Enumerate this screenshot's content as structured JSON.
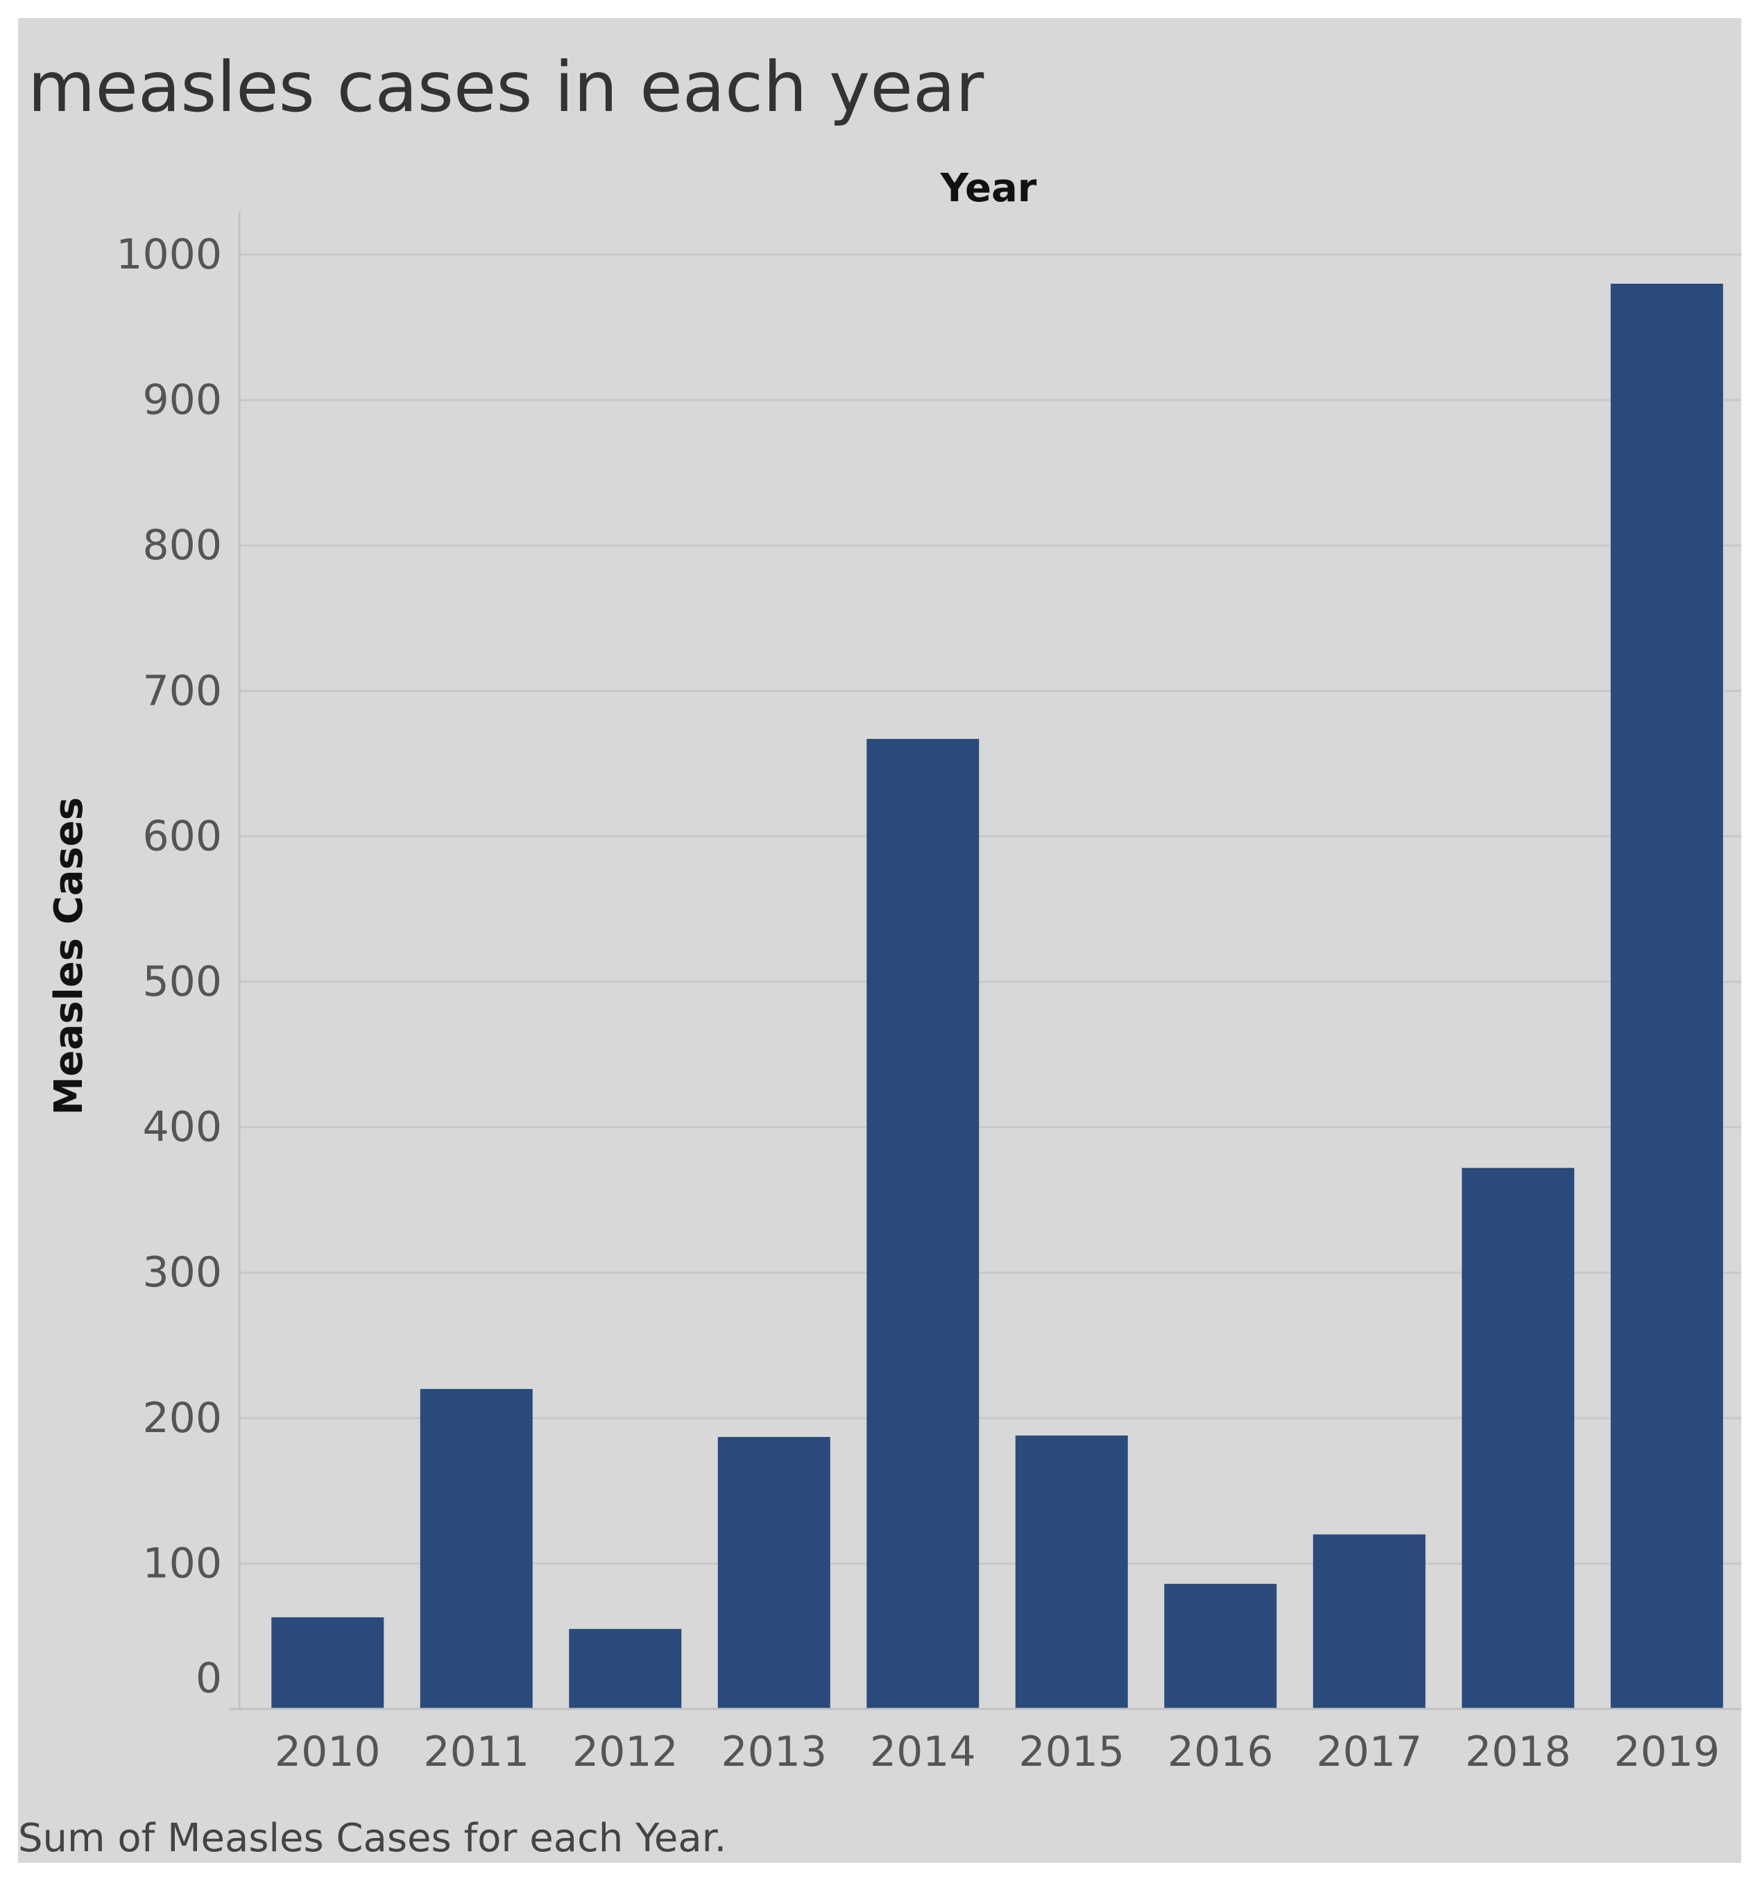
{
  "chart_data": {
    "type": "bar",
    "title": "measles cases in each year",
    "xlabel": "Year",
    "ylabel": "Measles Cases",
    "categories": [
      "2010",
      "2011",
      "2012",
      "2013",
      "2014",
      "2015",
      "2016",
      "2017",
      "2018",
      "2019"
    ],
    "values": [
      63,
      220,
      55,
      187,
      667,
      188,
      86,
      120,
      372,
      980
    ],
    "ylim": [
      0,
      1000
    ],
    "yticks": [
      "0",
      "100",
      "200",
      "300",
      "400",
      "500",
      "600",
      "700",
      "800",
      "900",
      "1000"
    ],
    "caption": "Sum of Measles Cases for each Year.",
    "bar_color": "#2a4a7b",
    "grid": true
  }
}
